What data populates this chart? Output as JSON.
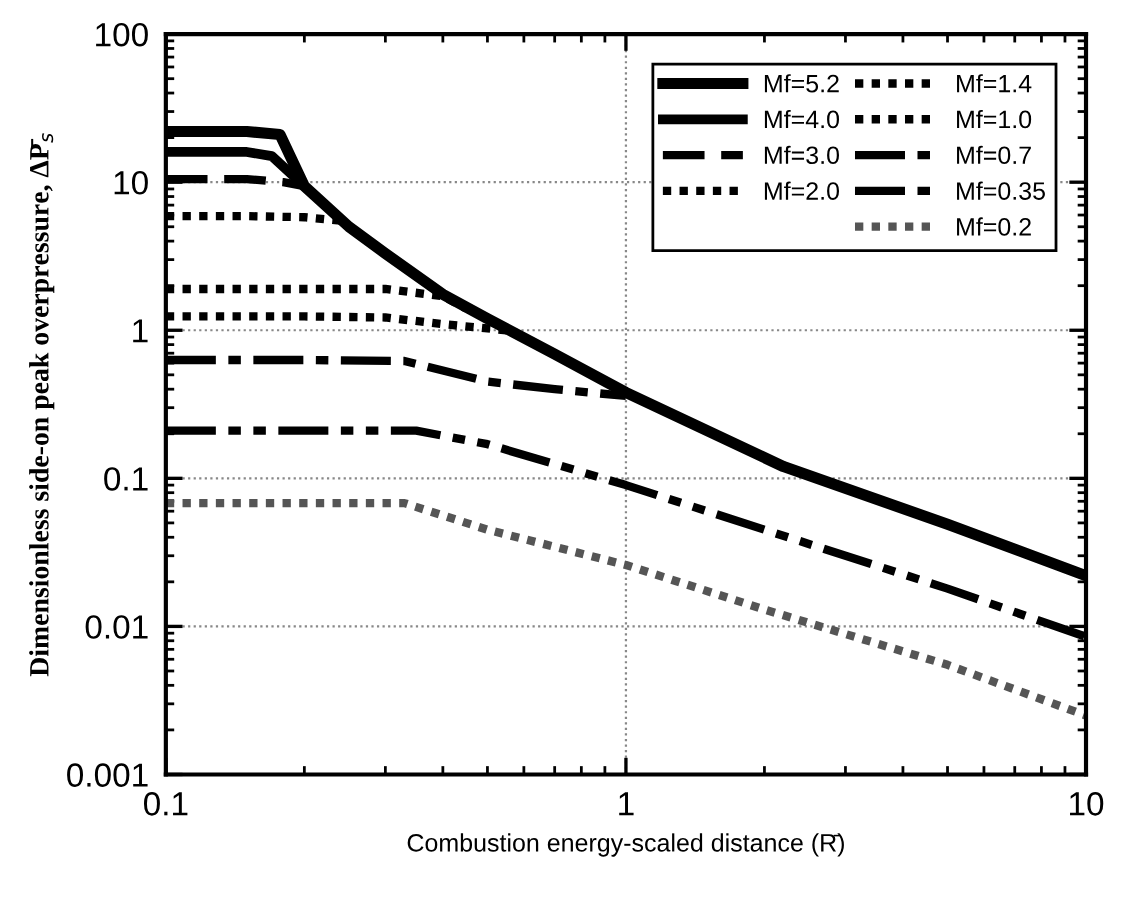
{
  "chart_data": {
    "type": "line",
    "xlabel": "Combustion energy-scaled distance (R̄)",
    "ylabel": "Dimensionless side-on peak overpressure, ΔP̄$_{s}$",
    "log": "xy",
    "xlim": [
      0.1,
      10
    ],
    "ylim": [
      0.001,
      100
    ],
    "xticks": [
      0.1,
      1,
      10
    ],
    "yticks": [
      0.001,
      0.01,
      0.1,
      1,
      10,
      100
    ],
    "grid": true,
    "legend": "top right",
    "marker": "none",
    "series": [
      {
        "name": "Mf=5.2",
        "color": "#000000",
        "line_style": "solid",
        "x": [
          0.1,
          0.15,
          0.177,
          0.2,
          0.25,
          0.3,
          0.4,
          0.5,
          0.7,
          1,
          2.2,
          5,
          10
        ],
        "values": [
          22,
          22,
          21,
          9.4,
          5,
          3.3,
          1.75,
          1.2,
          0.69,
          0.38,
          0.12,
          0.049,
          0.022
        ]
      },
      {
        "name": "Mf=4.0",
        "color": "#000000",
        "line_style": "solid",
        "x": [
          0.1,
          0.15,
          0.17,
          0.2
        ],
        "values": [
          16,
          16,
          15,
          9.4
        ]
      },
      {
        "name": "Mf=3.0",
        "color": "#000000",
        "line_style": "dashed",
        "x": [
          0.1,
          0.15,
          0.18,
          0.2
        ],
        "values": [
          10.5,
          10.5,
          10,
          9.4
        ]
      },
      {
        "name": "Mf=2.0",
        "color": "#000000",
        "line_style": "dotted",
        "x": [
          0.1,
          0.15,
          0.2,
          0.24
        ],
        "values": [
          5.9,
          5.9,
          5.8,
          5.5
        ]
      },
      {
        "name": "Mf=1.4",
        "color": "#000000",
        "line_style": "dotted",
        "x": [
          0.1,
          0.2,
          0.3,
          0.4,
          0.45
        ],
        "values": [
          1.9,
          1.9,
          1.9,
          1.7,
          1.4
        ]
      },
      {
        "name": "Mf=1.0",
        "color": "#000000",
        "line_style": "dotted",
        "x": [
          0.1,
          0.2,
          0.3,
          0.4,
          0.55
        ],
        "values": [
          1.24,
          1.24,
          1.22,
          1.1,
          1.0
        ]
      },
      {
        "name": "Mf=0.7",
        "color": "#000000",
        "line_style": "dashdot",
        "x": [
          0.1,
          0.2,
          0.33,
          0.5,
          0.7,
          1
        ],
        "values": [
          0.63,
          0.63,
          0.62,
          0.45,
          0.4,
          0.36
        ]
      },
      {
        "name": "Mf=0.35",
        "color": "#000000",
        "line_style": "dashdotdot",
        "x": [
          0.1,
          0.2,
          0.35,
          0.5,
          1,
          2,
          5,
          10
        ],
        "values": [
          0.21,
          0.21,
          0.21,
          0.17,
          0.09,
          0.045,
          0.018,
          0.0085
        ]
      },
      {
        "name": "Mf=0.2",
        "color": "#555555",
        "line_style": "dotted",
        "x": [
          0.1,
          0.2,
          0.33,
          0.5,
          1,
          2,
          5,
          10
        ],
        "values": [
          0.068,
          0.068,
          0.068,
          0.045,
          0.026,
          0.013,
          0.0055,
          0.0025
        ]
      }
    ]
  }
}
